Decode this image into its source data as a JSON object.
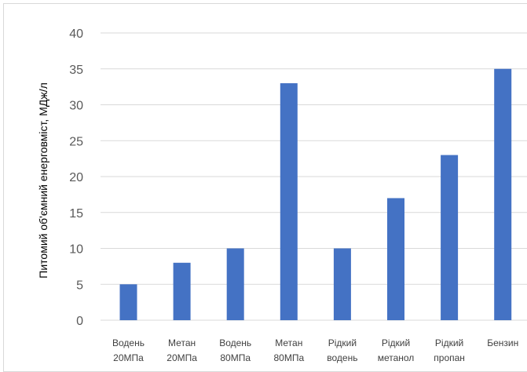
{
  "chart_data": {
    "type": "bar",
    "categories": [
      [
        "Водень",
        "20МПа"
      ],
      [
        "Метан",
        "20МПа"
      ],
      [
        "Водень",
        "80МПа"
      ],
      [
        "Метан",
        "80МПа"
      ],
      [
        "Рідкий",
        "водень"
      ],
      [
        "Рідкий",
        "метанол"
      ],
      [
        "Рідкий",
        "пропан"
      ],
      [
        "Бензин"
      ]
    ],
    "values": [
      5,
      8,
      10,
      33,
      10,
      17,
      23,
      35
    ],
    "ylabel": "Питомий об'ємний енерговміст, МДж/л",
    "ylim": [
      0,
      40
    ],
    "yticks": [
      0,
      5,
      10,
      15,
      20,
      25,
      30,
      35,
      40
    ],
    "grid": true,
    "bar_color": "#4472c4",
    "grid_color": "#d9d9d9"
  }
}
